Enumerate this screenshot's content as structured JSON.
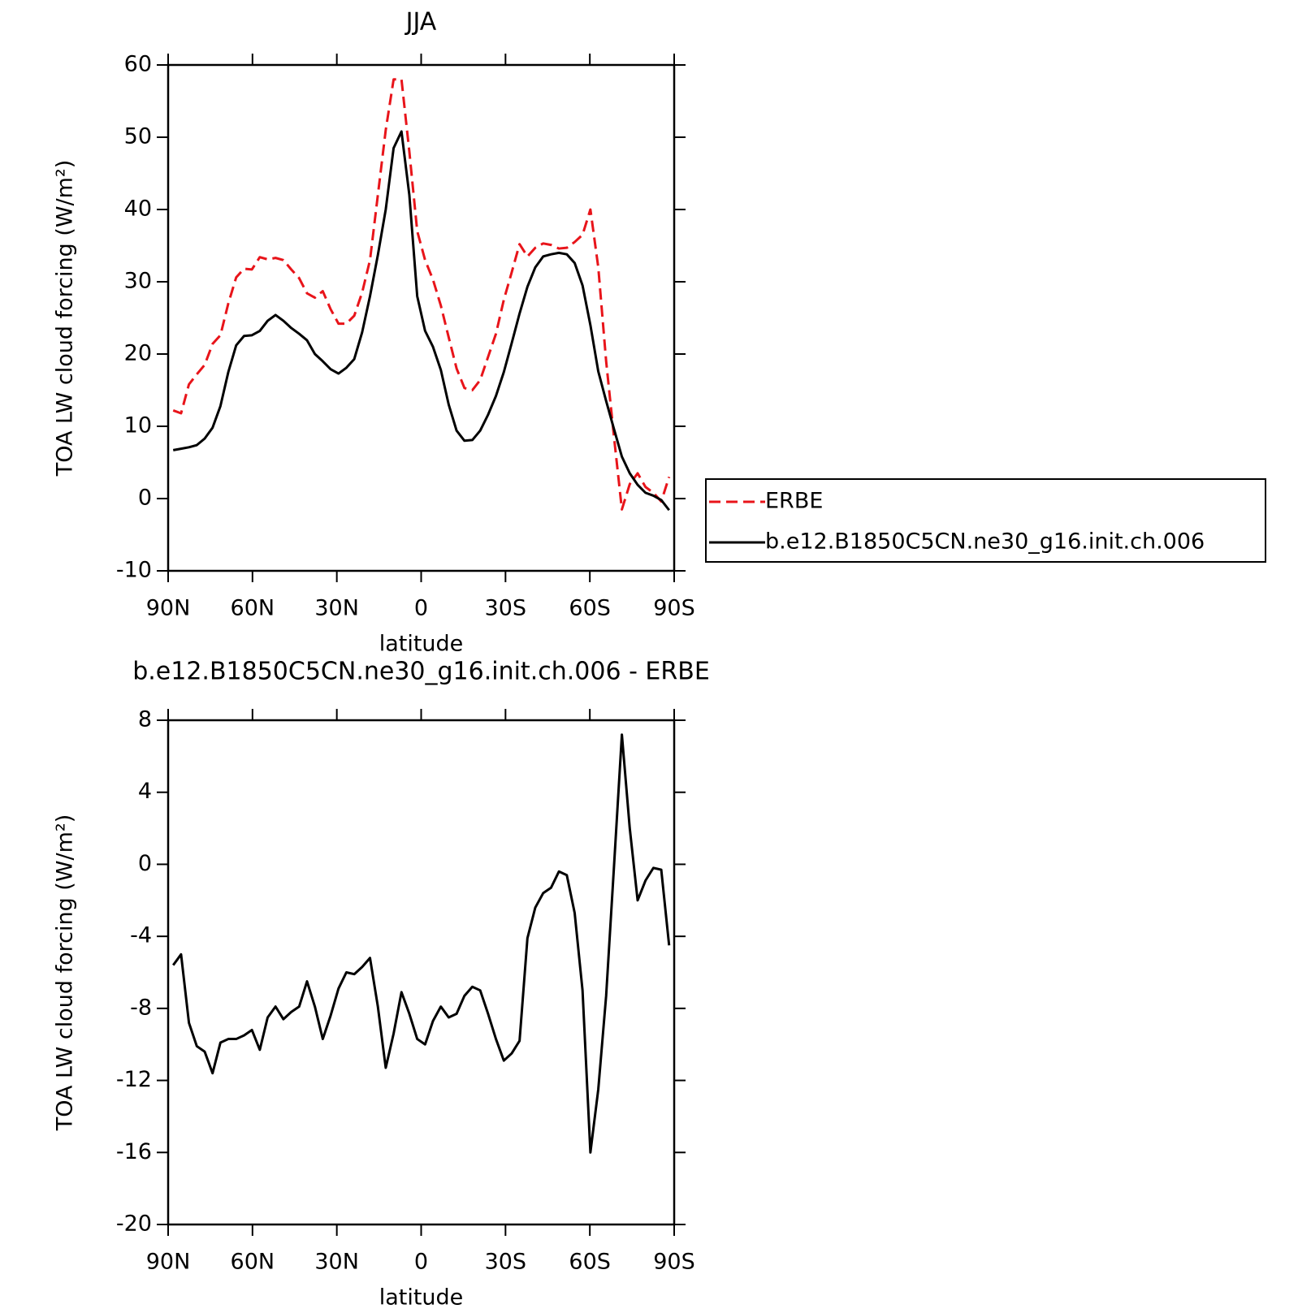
{
  "chart_data": [
    {
      "type": "line",
      "title": "JJA",
      "xlabel": "latitude",
      "ylabel": "TOA LW cloud forcing (W/m²)",
      "x": [
        88.2,
        85.4,
        82.6,
        79.8,
        77,
        74.2,
        71.4,
        68.6,
        65.8,
        63,
        60.2,
        57.4,
        54.6,
        51.8,
        49,
        46.2,
        43.4,
        40.6,
        37.8,
        35,
        32.2,
        29.4,
        26.6,
        23.8,
        21,
        18.2,
        15.4,
        12.6,
        9.8,
        7,
        4.2,
        1.4,
        -1.4,
        -4.2,
        -7,
        -9.8,
        -12.6,
        -15.4,
        -18.2,
        -21,
        -23.8,
        -26.6,
        -29.4,
        -32.2,
        -35,
        -37.8,
        -40.6,
        -43.4,
        -46.2,
        -49,
        -51.8,
        -54.6,
        -57.4,
        -60.2,
        -63,
        -65.8,
        -68.6,
        -71.4,
        -74.2,
        -77,
        -79.8,
        -82.6,
        -85.4,
        -88.2
      ],
      "series": [
        {
          "name": "ERBE",
          "color": "#e8141a",
          "dash": "dashed",
          "values": [
            12.2,
            11.8,
            15.8,
            17.2,
            18.5,
            21.4,
            22.6,
            27,
            30.6,
            31.8,
            31.7,
            33.4,
            33.1,
            33.3,
            33,
            31.7,
            30.5,
            28.4,
            27.8,
            28.7,
            26.2,
            24.2,
            24.2,
            25.3,
            28.5,
            33,
            42,
            51,
            58,
            58,
            48,
            37,
            33,
            30.3,
            26.7,
            22.3,
            18,
            15.3,
            15,
            16.4,
            19.6,
            22.8,
            27.5,
            31.3,
            35.2,
            33.5,
            34.7,
            35.3,
            35.1,
            34.6,
            34.7,
            35.5,
            36.5,
            40,
            32,
            19,
            8.5,
            -1.5,
            2,
            3.5,
            1.6,
            0.8,
            -0.4,
            3
          ]
        },
        {
          "name": "b.e12.B1850C5CN.ne30_g16.init.ch.006",
          "color": "#000000",
          "dash": "solid",
          "values": [
            6.7,
            6.9,
            7.1,
            7.4,
            8.3,
            9.8,
            12.8,
            17.5,
            21.2,
            22.5,
            22.6,
            23.2,
            24.6,
            25.4,
            24.6,
            23.6,
            22.8,
            21.9,
            20,
            19,
            17.9,
            17.3,
            18.1,
            19.3,
            23,
            28,
            33.7,
            40,
            48.5,
            50.8,
            42,
            28,
            23.2,
            21,
            17.8,
            13,
            9.4,
            8,
            8.1,
            9.4,
            11.6,
            14.2,
            17.5,
            21.5,
            25.6,
            29.3,
            32,
            33.5,
            33.8,
            34,
            33.8,
            32.6,
            29.5,
            24,
            17.6,
            13.5,
            9.6,
            5.8,
            3.5,
            1.9,
            0.8,
            0.4,
            -0.2,
            -1.6
          ]
        }
      ],
      "xlim": [
        90,
        -90
      ],
      "xticks": [
        {
          "value": 90,
          "label": "90N"
        },
        {
          "value": 60,
          "label": "60N"
        },
        {
          "value": 30,
          "label": "30N"
        },
        0,
        {
          "value": -30,
          "label": "30S"
        },
        {
          "value": -60,
          "label": "60S"
        },
        {
          "value": -90,
          "label": "90S"
        }
      ],
      "ylim": [
        -10,
        60
      ],
      "yticks": [
        -10,
        0,
        10,
        20,
        30,
        40,
        50,
        60
      ],
      "legend": "right"
    },
    {
      "type": "line",
      "title": "b.e12.B1850C5CN.ne30_g16.init.ch.006 - ERBE",
      "xlabel": "latitude",
      "ylabel": "TOA LW cloud forcing (W/m²)",
      "x": [
        88.2,
        85.4,
        82.6,
        79.8,
        77,
        74.2,
        71.4,
        68.6,
        65.8,
        63,
        60.2,
        57.4,
        54.6,
        51.8,
        49,
        46.2,
        43.4,
        40.6,
        37.8,
        35,
        32.2,
        29.4,
        26.6,
        23.8,
        21,
        18.2,
        15.4,
        12.6,
        9.8,
        7,
        4.2,
        1.4,
        -1.4,
        -4.2,
        -7,
        -9.8,
        -12.6,
        -15.4,
        -18.2,
        -21,
        -23.8,
        -26.6,
        -29.4,
        -32.2,
        -35,
        -37.8,
        -40.6,
        -43.4,
        -46.2,
        -49,
        -51.8,
        -54.6,
        -57.4,
        -60.2,
        -63,
        -65.8,
        -68.6,
        -71.4,
        -74.2,
        -77,
        -79.8,
        -82.6,
        -85.4,
        -88.2
      ],
      "series": [
        {
          "color": "#000000",
          "dash": "solid",
          "values": [
            -5.6,
            -5.0,
            -8.8,
            -10.1,
            -10.4,
            -11.6,
            -9.9,
            -9.7,
            -9.7,
            -9.5,
            -9.2,
            -10.3,
            -8.5,
            -7.9,
            -8.6,
            -8.2,
            -7.9,
            -6.5,
            -7.9,
            -9.7,
            -8.4,
            -6.9,
            -6.0,
            -6.1,
            -5.7,
            -5.2,
            -7.9,
            -11.3,
            -9.4,
            -7.1,
            -8.3,
            -9.7,
            -10.0,
            -8.7,
            -7.9,
            -8.5,
            -8.3,
            -7.3,
            -6.8,
            -7.0,
            -8.3,
            -9.7,
            -10.9,
            -10.5,
            -9.8,
            -4.1,
            -2.4,
            -1.6,
            -1.3,
            -0.4,
            -0.6,
            -2.7,
            -7.0,
            -16.0,
            -12.5,
            -7.3,
            -0.1,
            7.2,
            2.0,
            -2.0,
            -0.9,
            -0.2,
            -0.3,
            -4.5
          ]
        }
      ],
      "xlim": [
        90,
        -90
      ],
      "xticks": [
        {
          "value": 90,
          "label": "90N"
        },
        {
          "value": 60,
          "label": "60N"
        },
        {
          "value": 30,
          "label": "30N"
        },
        0,
        {
          "value": -30,
          "label": "30S"
        },
        {
          "value": -60,
          "label": "60S"
        },
        {
          "value": -90,
          "label": "90S"
        }
      ],
      "ylim": [
        -20,
        8
      ],
      "yticks": [
        -20,
        -16,
        -12,
        -8,
        -4,
        0,
        4,
        8
      ]
    }
  ]
}
